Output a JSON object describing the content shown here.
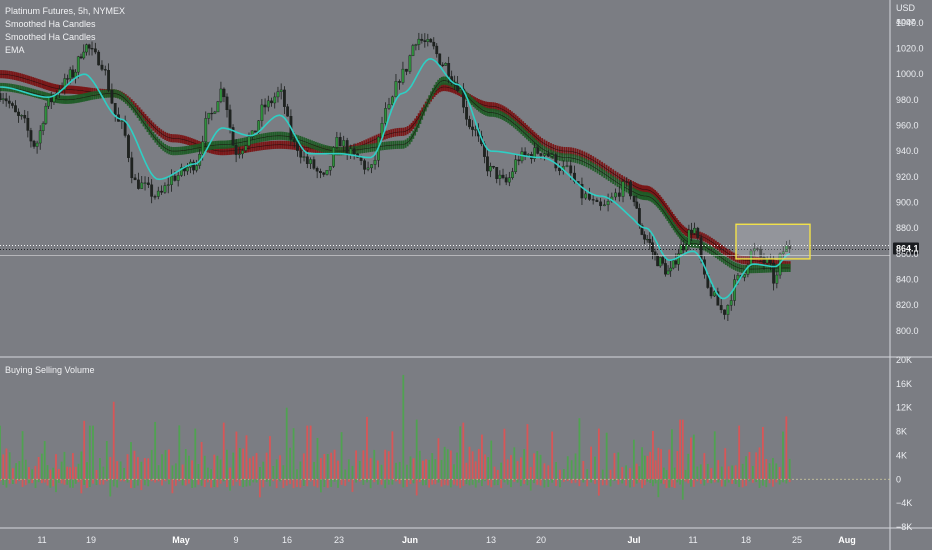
{
  "header": {
    "symbol_line": "Platinum Futures, 5h, NYMEX",
    "indicator_1": "Smoothed Ha Candles",
    "indicator_2": "Smoothed Ha Candles",
    "indicator_3": "EMA"
  },
  "price_axis": {
    "currency": "USD",
    "user": "apoz",
    "last_price_label": "864.1"
  },
  "volume_panel": {
    "title": "Buying Selling Volume"
  },
  "colors": {
    "background": "#7b7d83",
    "bull_candle": "#2f8f3c",
    "bear_candle": "#1f2320",
    "ema_line": "#2ecfc4",
    "smoothed_ha_1": "#7a1212",
    "smoothed_ha_2": "#1e5c25",
    "buy_volume": "#4ba64b",
    "sell_volume": "#e25252",
    "highlight_box": "#f3e24a",
    "price_tag": "#1a1c20"
  },
  "chart_data": [
    {
      "type": "candlestick",
      "title": "Platinum Futures, 5h, NYMEX",
      "ylabel": "USD",
      "ylim": [
        785,
        1050
      ],
      "y_ticks": [
        800,
        820,
        840,
        860,
        880,
        900,
        920,
        940,
        960,
        980,
        1000,
        1020,
        1040
      ],
      "x_ticks": [
        {
          "label": "11",
          "bold": false
        },
        {
          "label": "19",
          "bold": false
        },
        {
          "label": "May",
          "bold": true
        },
        {
          "label": "9",
          "bold": false
        },
        {
          "label": "16",
          "bold": false
        },
        {
          "label": "23",
          "bold": false
        },
        {
          "label": "Jun",
          "bold": true
        },
        {
          "label": "13",
          "bold": false
        },
        {
          "label": "20",
          "bold": false
        },
        {
          "label": "Jul",
          "bold": true
        },
        {
          "label": "11",
          "bold": false
        },
        {
          "label": "18",
          "bold": false
        },
        {
          "label": "25",
          "bold": false
        },
        {
          "label": "Aug",
          "bold": true
        }
      ],
      "last_price": 864.1,
      "highlight_range": {
        "date_from": "Jul 18",
        "date_to": "Jul 25",
        "price_from": 856,
        "price_to": 883
      },
      "price_path": [
        {
          "date": "Apr 5",
          "close": 985
        },
        {
          "date": "Apr 8",
          "close": 965
        },
        {
          "date": "Apr 10",
          "close": 945
        },
        {
          "date": "Apr 12",
          "close": 978
        },
        {
          "date": "Apr 14",
          "close": 990
        },
        {
          "date": "Apr 16",
          "close": 1000
        },
        {
          "date": "Apr 18",
          "close": 1022
        },
        {
          "date": "Apr 20",
          "close": 1012
        },
        {
          "date": "Apr 23",
          "close": 960
        },
        {
          "date": "Apr 25",
          "close": 915
        },
        {
          "date": "Apr 28",
          "close": 905
        },
        {
          "date": "Apr 30",
          "close": 920
        },
        {
          "date": "May 3",
          "close": 930
        },
        {
          "date": "May 5",
          "close": 965
        },
        {
          "date": "May 7",
          "close": 988
        },
        {
          "date": "May 9",
          "close": 940
        },
        {
          "date": "May 11",
          "close": 950
        },
        {
          "date": "May 13",
          "close": 975
        },
        {
          "date": "May 15",
          "close": 985
        },
        {
          "date": "May 17",
          "close": 945
        },
        {
          "date": "May 19",
          "close": 930
        },
        {
          "date": "May 21",
          "close": 918
        },
        {
          "date": "May 23",
          "close": 948
        },
        {
          "date": "May 25",
          "close": 935
        },
        {
          "date": "May 27",
          "close": 925
        },
        {
          "date": "May 29",
          "close": 970
        },
        {
          "date": "May 31",
          "close": 1000
        },
        {
          "date": "Jun 2",
          "close": 1028
        },
        {
          "date": "Jun 4",
          "close": 1022
        },
        {
          "date": "Jun 6",
          "close": 1008
        },
        {
          "date": "Jun 8",
          "close": 992
        },
        {
          "date": "Jun 10",
          "close": 960
        },
        {
          "date": "Jun 13",
          "close": 925
        },
        {
          "date": "Jun 15",
          "close": 915
        },
        {
          "date": "Jun 17",
          "close": 935
        },
        {
          "date": "Jun 20",
          "close": 940
        },
        {
          "date": "Jun 23",
          "close": 925
        },
        {
          "date": "Jun 25",
          "close": 905
        },
        {
          "date": "Jun 27",
          "close": 895
        },
        {
          "date": "Jun 30",
          "close": 912
        },
        {
          "date": "Jul 3",
          "close": 872
        },
        {
          "date": "Jul 5",
          "close": 855
        },
        {
          "date": "Jul 7",
          "close": 845
        },
        {
          "date": "Jul 9",
          "close": 865
        },
        {
          "date": "Jul 11",
          "close": 880
        },
        {
          "date": "Jul 13",
          "close": 832
        },
        {
          "date": "Jul 15",
          "close": 815
        },
        {
          "date": "Jul 17",
          "close": 840
        },
        {
          "date": "Jul 19",
          "close": 862
        },
        {
          "date": "Jul 21",
          "close": 852
        },
        {
          "date": "Jul 22",
          "close": 838
        },
        {
          "date": "Jul 23",
          "close": 862
        },
        {
          "date": "Jul 24",
          "close": 866
        }
      ],
      "ema_path": [
        {
          "date": "Apr 5",
          "value": 990
        },
        {
          "date": "Apr 12",
          "value": 982
        },
        {
          "date": "Apr 18",
          "value": 1000
        },
        {
          "date": "Apr 23",
          "value": 965
        },
        {
          "date": "Apr 28",
          "value": 918
        },
        {
          "date": "May 3",
          "value": 930
        },
        {
          "date": "May 7",
          "value": 958
        },
        {
          "date": "May 11",
          "value": 952
        },
        {
          "date": "May 15",
          "value": 968
        },
        {
          "date": "May 19",
          "value": 938
        },
        {
          "date": "May 23",
          "value": 938
        },
        {
          "date": "May 27",
          "value": 935
        },
        {
          "date": "May 31",
          "value": 985
        },
        {
          "date": "Jun 4",
          "value": 1012
        },
        {
          "date": "Jun 8",
          "value": 992
        },
        {
          "date": "Jun 13",
          "value": 940
        },
        {
          "date": "Jun 20",
          "value": 935
        },
        {
          "date": "Jun 27",
          "value": 905
        },
        {
          "date": "Jul 3",
          "value": 880
        },
        {
          "date": "Jul 7",
          "value": 855
        },
        {
          "date": "Jul 11",
          "value": 862
        },
        {
          "date": "Jul 15",
          "value": 825
        },
        {
          "date": "Jul 19",
          "value": 852
        },
        {
          "date": "Jul 22",
          "value": 850
        },
        {
          "date": "Jul 24",
          "value": 860
        }
      ],
      "series": [
        {
          "name": "Smoothed Ha Candles",
          "style": "dotted-band",
          "color": "#7a1212",
          "values": [
            {
              "date": "Apr 5",
              "value": 1000
            },
            {
              "date": "Apr 15",
              "value": 988
            },
            {
              "date": "Apr 22",
              "value": 985
            },
            {
              "date": "Apr 30",
              "value": 950
            },
            {
              "date": "May 7",
              "value": 940
            },
            {
              "date": "May 15",
              "value": 945
            },
            {
              "date": "May 23",
              "value": 940
            },
            {
              "date": "May 31",
              "value": 955
            },
            {
              "date": "Jun 6",
              "value": 990
            },
            {
              "date": "Jun 13",
              "value": 975
            },
            {
              "date": "Jun 23",
              "value": 940
            },
            {
              "date": "Jul 3",
              "value": 910
            },
            {
              "date": "Jul 11",
              "value": 875
            },
            {
              "date": "Jul 18",
              "value": 855
            },
            {
              "date": "Jul 24",
              "value": 851
            }
          ]
        },
        {
          "name": "Smoothed Ha Candles",
          "style": "dotted-band",
          "color": "#1e5c25",
          "values": [
            {
              "date": "Apr 5",
              "value": 990
            },
            {
              "date": "Apr 15",
              "value": 980
            },
            {
              "date": "Apr 22",
              "value": 985
            },
            {
              "date": "Apr 30",
              "value": 940
            },
            {
              "date": "May 7",
              "value": 945
            },
            {
              "date": "May 15",
              "value": 952
            },
            {
              "date": "May 23",
              "value": 940
            },
            {
              "date": "May 31",
              "value": 945
            },
            {
              "date": "Jun 6",
              "value": 995
            },
            {
              "date": "Jun 13",
              "value": 970
            },
            {
              "date": "Jun 23",
              "value": 935
            },
            {
              "date": "Jul 3",
              "value": 905
            },
            {
              "date": "Jul 11",
              "value": 868
            },
            {
              "date": "Jul 18",
              "value": 848
            },
            {
              "date": "Jul 24",
              "value": 849
            }
          ]
        }
      ]
    },
    {
      "type": "bar",
      "title": "Buying Selling Volume",
      "ylim": [
        -8000,
        20000
      ],
      "y_ticks": [
        {
          "value": 20000,
          "label": "20K"
        },
        {
          "value": 16000,
          "label": "16K"
        },
        {
          "value": 12000,
          "label": "12K"
        },
        {
          "value": 8000,
          "label": "8K"
        },
        {
          "value": 4000,
          "label": "4K"
        },
        {
          "value": 0,
          "label": "0"
        },
        {
          "value": -4000,
          "label": "−4K"
        },
        {
          "value": -8000,
          "label": "−8K"
        }
      ],
      "series": [
        {
          "name": "Buying Volume",
          "color": "#4ba64b",
          "values": [
            {
              "date": "Apr 19",
              "value": 9000
            },
            {
              "date": "May 3",
              "value": 8500
            },
            {
              "date": "May 16",
              "value": 12000
            },
            {
              "date": "May 31",
              "value": 17500
            },
            {
              "date": "Jun 2",
              "value": 10000
            },
            {
              "date": "Jun 13",
              "value": 6500
            },
            {
              "date": "Jul 11",
              "value": 7500
            },
            {
              "date": "Jul 23",
              "value": 8000
            }
          ]
        },
        {
          "name": "Selling Volume",
          "color": "#e25252",
          "values": [
            {
              "date": "Apr 22",
              "value": 13000
            },
            {
              "date": "May 9",
              "value": 8000
            },
            {
              "date": "May 19",
              "value": 9000
            },
            {
              "date": "Jun 9",
              "value": 9500
            },
            {
              "date": "Jun 27",
              "value": 8500
            },
            {
              "date": "Jul 9",
              "value": 10000
            },
            {
              "date": "Jul 17",
              "value": 9000
            },
            {
              "date": "Jul 25",
              "value": 5500
            }
          ]
        }
      ]
    }
  ]
}
